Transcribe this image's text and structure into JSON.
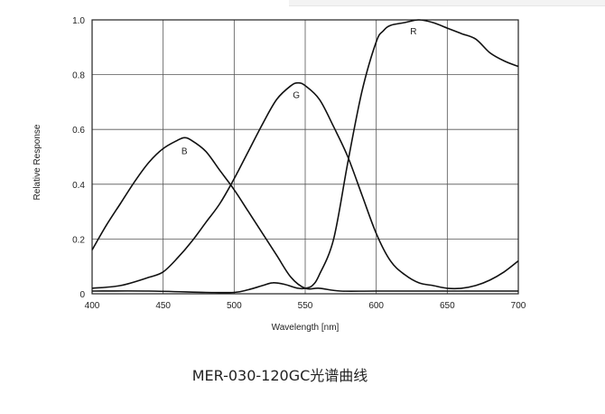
{
  "caption": "MER-030-120GC光谱曲线",
  "chart_data": {
    "type": "line",
    "xlabel": "Wavelength [nm]",
    "ylabel": "Relative Response",
    "xlim": [
      400,
      700
    ],
    "ylim": [
      0,
      1.0
    ],
    "x_ticks": [
      "400",
      "450",
      "500",
      "550",
      "600",
      "650",
      "700"
    ],
    "y_ticks": [
      "0",
      "0.2",
      "0.4",
      "0.6",
      "0.8",
      "1.0"
    ],
    "grid": true,
    "legend": "inline-labels",
    "series": [
      {
        "name": "B",
        "color": "#111111",
        "points": [
          [
            400,
            0.16
          ],
          [
            410,
            0.25
          ],
          [
            420,
            0.33
          ],
          [
            430,
            0.41
          ],
          [
            440,
            0.48
          ],
          [
            450,
            0.53
          ],
          [
            460,
            0.56
          ],
          [
            465,
            0.57
          ],
          [
            470,
            0.56
          ],
          [
            480,
            0.52
          ],
          [
            490,
            0.45
          ],
          [
            500,
            0.38
          ],
          [
            510,
            0.3
          ],
          [
            520,
            0.22
          ],
          [
            530,
            0.14
          ],
          [
            540,
            0.06
          ],
          [
            550,
            0.02
          ],
          [
            560,
            0.02
          ],
          [
            575,
            0.01
          ],
          [
            600,
            0.01
          ],
          [
            650,
            0.01
          ],
          [
            700,
            0.01
          ]
        ]
      },
      {
        "name": "G",
        "color": "#111111",
        "points": [
          [
            400,
            0.02
          ],
          [
            420,
            0.03
          ],
          [
            440,
            0.06
          ],
          [
            450,
            0.08
          ],
          [
            460,
            0.13
          ],
          [
            470,
            0.19
          ],
          [
            480,
            0.26
          ],
          [
            490,
            0.33
          ],
          [
            500,
            0.42
          ],
          [
            510,
            0.52
          ],
          [
            520,
            0.62
          ],
          [
            530,
            0.71
          ],
          [
            540,
            0.76
          ],
          [
            545,
            0.77
          ],
          [
            550,
            0.76
          ],
          [
            560,
            0.71
          ],
          [
            570,
            0.61
          ],
          [
            580,
            0.5
          ],
          [
            590,
            0.36
          ],
          [
            600,
            0.22
          ],
          [
            610,
            0.12
          ],
          [
            620,
            0.07
          ],
          [
            630,
            0.04
          ],
          [
            640,
            0.03
          ],
          [
            650,
            0.02
          ],
          [
            660,
            0.02
          ],
          [
            670,
            0.03
          ],
          [
            680,
            0.05
          ],
          [
            690,
            0.08
          ],
          [
            700,
            0.12
          ]
        ]
      },
      {
        "name": "R",
        "color": "#111111",
        "points": [
          [
            400,
            0.01
          ],
          [
            440,
            0.01
          ],
          [
            480,
            0.005
          ],
          [
            500,
            0.005
          ],
          [
            510,
            0.015
          ],
          [
            520,
            0.03
          ],
          [
            527,
            0.04
          ],
          [
            535,
            0.035
          ],
          [
            545,
            0.02
          ],
          [
            550,
            0.02
          ],
          [
            555,
            0.03
          ],
          [
            560,
            0.07
          ],
          [
            570,
            0.2
          ],
          [
            580,
            0.48
          ],
          [
            590,
            0.74
          ],
          [
            600,
            0.92
          ],
          [
            605,
            0.96
          ],
          [
            610,
            0.98
          ],
          [
            620,
            0.99
          ],
          [
            630,
            1.0
          ],
          [
            640,
            0.99
          ],
          [
            650,
            0.97
          ],
          [
            660,
            0.95
          ],
          [
            670,
            0.93
          ],
          [
            680,
            0.88
          ],
          [
            690,
            0.85
          ],
          [
            700,
            0.83
          ]
        ]
      }
    ]
  }
}
